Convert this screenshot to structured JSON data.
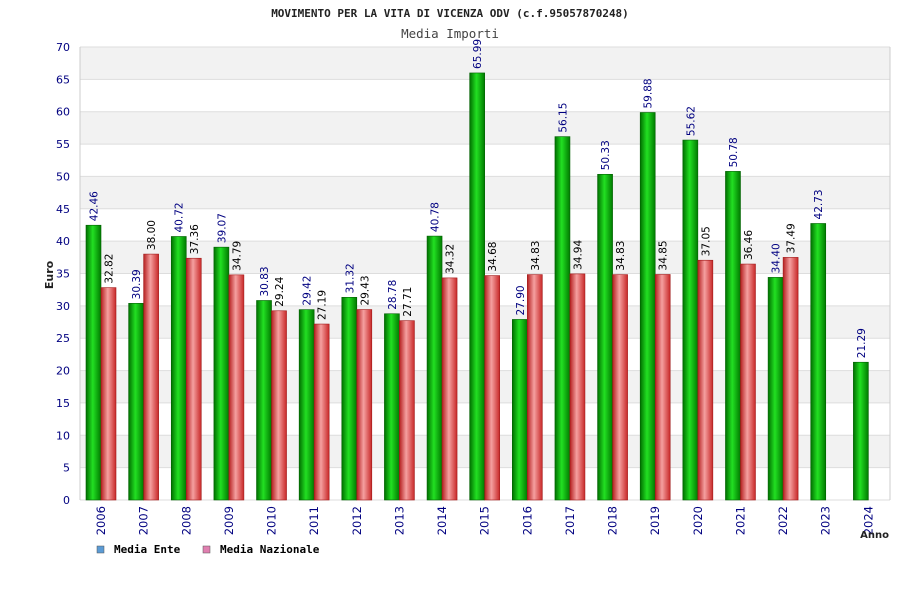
{
  "chart_data": {
    "type": "bar",
    "title": "MOVIMENTO PER LA VITA DI VICENZA ODV (c.f.95057870248)",
    "subtitle": "Media Importi",
    "xlabel": "Anno",
    "ylabel": "Euro",
    "ylim": [
      0,
      70
    ],
    "yticks": [
      0,
      5,
      10,
      15,
      20,
      25,
      30,
      35,
      40,
      45,
      50,
      55,
      60,
      65,
      70
    ],
    "grid": true,
    "legend_position": "bottom-left",
    "categories": [
      "2006",
      "2007",
      "2008",
      "2009",
      "2010",
      "2011",
      "2012",
      "2013",
      "2014",
      "2015",
      "2016",
      "2017",
      "2018",
      "2019",
      "2020",
      "2021",
      "2022",
      "2023",
      "2024"
    ],
    "series": [
      {
        "name": "Media Ente",
        "color": "#00b000",
        "legend_color": "#5b9bd5",
        "values": [
          42.46,
          30.39,
          40.72,
          39.07,
          30.83,
          29.42,
          31.32,
          28.78,
          40.78,
          65.99,
          27.9,
          56.15,
          50.33,
          59.88,
          55.62,
          50.78,
          34.4,
          42.73,
          21.29
        ],
        "labels": [
          "42.46",
          "30.39",
          "40.72",
          "39.07",
          "30.83",
          "29.42",
          "31.32",
          "28.78",
          "40.78",
          "65.99",
          "27.90",
          "56.15",
          "50.33",
          "59.88",
          "55.62",
          "50.78",
          "34.40",
          "42.73",
          "21.29"
        ]
      },
      {
        "name": "Media Nazionale",
        "color": "#e23a3a",
        "legend_color": "#e07fb0",
        "values": [
          32.82,
          38.0,
          37.36,
          34.79,
          29.24,
          27.19,
          29.43,
          27.71,
          34.32,
          34.68,
          34.83,
          34.94,
          34.83,
          34.85,
          37.05,
          36.46,
          37.49,
          null,
          null
        ],
        "labels": [
          "32.82",
          "38.00",
          "37.36",
          "34.79",
          "29.24",
          "27.19",
          "29.43",
          "27.71",
          "34.32",
          "34.68",
          "34.83",
          "34.94",
          "34.83",
          "34.85",
          "37.05",
          "36.46",
          "37.49",
          null,
          null
        ]
      }
    ]
  }
}
